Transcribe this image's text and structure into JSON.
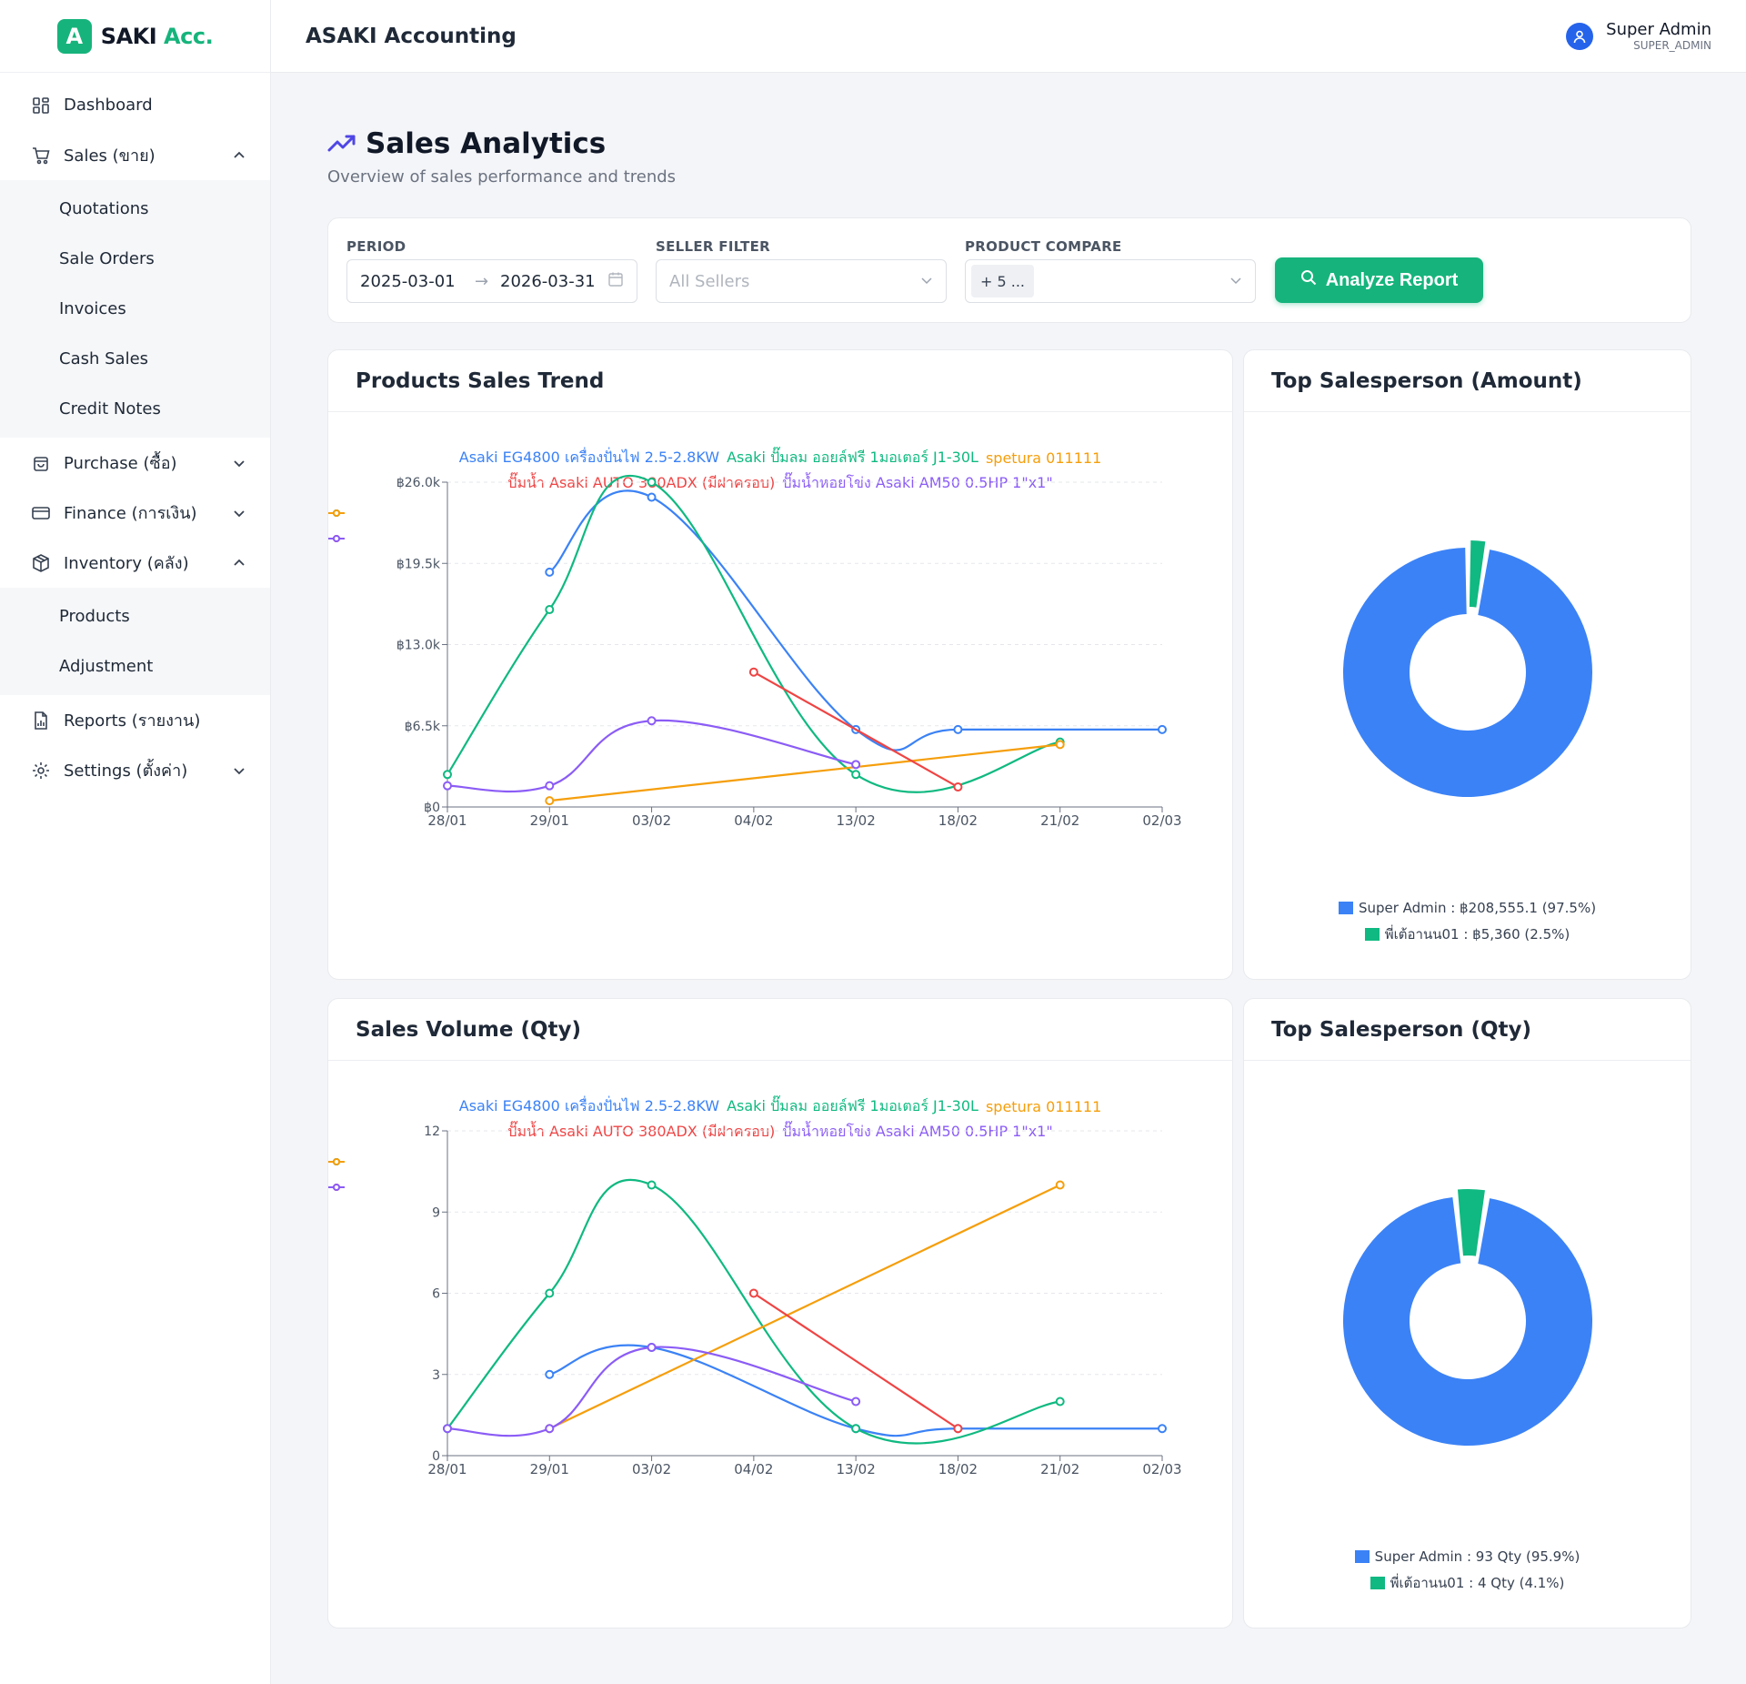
{
  "brand": {
    "mark": "A",
    "name_dark": "SAKI",
    "name_green": "Acc."
  },
  "header": {
    "title": "ASAKI Accounting",
    "user_name": "Super Admin",
    "user_role": "SUPER_ADMIN"
  },
  "sidebar": {
    "dashboard": "Dashboard",
    "sales": "Sales (ขาย)",
    "sales_items": [
      "Quotations",
      "Sale Orders",
      "Invoices",
      "Cash Sales",
      "Credit Notes"
    ],
    "purchase": "Purchase (ซื้อ)",
    "finance": "Finance (การเงิน)",
    "inventory": "Inventory (คลัง)",
    "inventory_items": [
      "Products",
      "Adjustment"
    ],
    "reports": "Reports (รายงาน)",
    "settings": "Settings (ตั้งค่า)"
  },
  "page": {
    "title": "Sales Analytics",
    "subtitle": "Overview of sales performance and trends"
  },
  "filters": {
    "period_label": "PERIOD",
    "date_from": "2025-03-01",
    "date_arrow": "→",
    "date_to": "2026-03-31",
    "seller_label": "SELLER FILTER",
    "seller_placeholder": "All Sellers",
    "product_label": "PRODUCT COMPARE",
    "product_tag": "+ 5 ...",
    "analyze_label": "Analyze Report"
  },
  "colors": {
    "blue": "#3b82f6",
    "green": "#10b981",
    "orange": "#f59e0b",
    "red": "#ef4444",
    "purple": "#8b5cf6"
  },
  "cards": {
    "trend_title": "Products Sales Trend",
    "amount_pie_title": "Top Salesperson (Amount)",
    "volume_title": "Sales Volume (Qty)",
    "qty_pie_title": "Top Salesperson (Qty)"
  },
  "chart_data": [
    {
      "type": "line",
      "title": "Products Sales Trend",
      "categories": [
        "28/01",
        "29/01",
        "03/02",
        "04/02",
        "13/02",
        "18/02",
        "21/02",
        "02/03"
      ],
      "y_ticks": [
        "฿0",
        "฿6.5k",
        "฿13.0k",
        "฿19.5k",
        "฿26.0k"
      ],
      "ylim": [
        0,
        26000
      ],
      "grid": true,
      "legend_position": "top",
      "series": [
        {
          "name": "Asaki EG4800 เครื่องปั่นไฟ 2.5-2.8KW",
          "color": "#3b82f6",
          "values": [
            null,
            18800,
            24800,
            null,
            6200,
            6200,
            null,
            6200
          ]
        },
        {
          "name": "Asaki ปั๊มลม ออยล์ฟรี 1มอเตอร์ J1-30L",
          "color": "#10b981",
          "values": [
            2600,
            15800,
            26000,
            null,
            2600,
            null,
            5200,
            null
          ]
        },
        {
          "name": "spetura 011111",
          "color": "#f59e0b",
          "values": [
            null,
            500,
            null,
            null,
            null,
            null,
            5000,
            null
          ]
        },
        {
          "name": "ปั๊มน้ำ Asaki AUTO 380ADX (มีฝาครอบ)",
          "color": "#ef4444",
          "values": [
            null,
            null,
            null,
            10800,
            null,
            1600,
            null,
            null
          ]
        },
        {
          "name": "ปั๊มน้ำหอยโข่ง Asaki AM50 0.5HP 1\"x1\"",
          "color": "#8b5cf6",
          "values": [
            1700,
            1700,
            6900,
            null,
            3400,
            null,
            null,
            null
          ]
        }
      ]
    },
    {
      "type": "pie",
      "title": "Top Salesperson (Amount)",
      "legend_position": "bottom",
      "slices": [
        {
          "name": "Super Admin",
          "label": "Super Admin : ฿208,555.1 (97.5%)",
          "value": 208555.1,
          "percent": 97.5,
          "color": "#3b82f6"
        },
        {
          "name": "พี่เต้อานน01",
          "label": "พี่เต้อานน01 : ฿5,360 (2.5%)",
          "value": 5360,
          "percent": 2.5,
          "color": "#10b981"
        }
      ]
    },
    {
      "type": "line",
      "title": "Sales Volume (Qty)",
      "categories": [
        "28/01",
        "29/01",
        "03/02",
        "04/02",
        "13/02",
        "18/02",
        "21/02",
        "02/03"
      ],
      "y_ticks": [
        "0",
        "3",
        "6",
        "9",
        "12"
      ],
      "ylim": [
        0,
        12
      ],
      "grid": true,
      "legend_position": "top",
      "series": [
        {
          "name": "Asaki EG4800 เครื่องปั่นไฟ 2.5-2.8KW",
          "color": "#3b82f6",
          "values": [
            null,
            3,
            4,
            null,
            1,
            1,
            null,
            1
          ]
        },
        {
          "name": "Asaki ปั๊มลม ออยล์ฟรี 1มอเตอร์ J1-30L",
          "color": "#10b981",
          "values": [
            1,
            6,
            10,
            null,
            1,
            null,
            2,
            null
          ]
        },
        {
          "name": "spetura 011111",
          "color": "#f59e0b",
          "values": [
            null,
            1,
            null,
            null,
            null,
            null,
            10,
            null
          ]
        },
        {
          "name": "ปั๊มน้ำ Asaki AUTO 380ADX (มีฝาครอบ)",
          "color": "#ef4444",
          "values": [
            null,
            null,
            null,
            6,
            null,
            1,
            null,
            null
          ]
        },
        {
          "name": "ปั๊มน้ำหอยโข่ง Asaki AM50 0.5HP 1\"x1\"",
          "color": "#8b5cf6",
          "values": [
            1,
            1,
            4,
            null,
            2,
            null,
            null,
            null
          ]
        }
      ]
    },
    {
      "type": "pie",
      "title": "Top Salesperson (Qty)",
      "legend_position": "bottom",
      "slices": [
        {
          "name": "Super Admin",
          "label": "Super Admin : 93 Qty (95.9%)",
          "value": 93,
          "percent": 95.9,
          "color": "#3b82f6"
        },
        {
          "name": "พี่เต้อานน01",
          "label": "พี่เต้อานน01 : 4 Qty (4.1%)",
          "value": 4,
          "percent": 4.1,
          "color": "#10b981"
        }
      ]
    }
  ]
}
